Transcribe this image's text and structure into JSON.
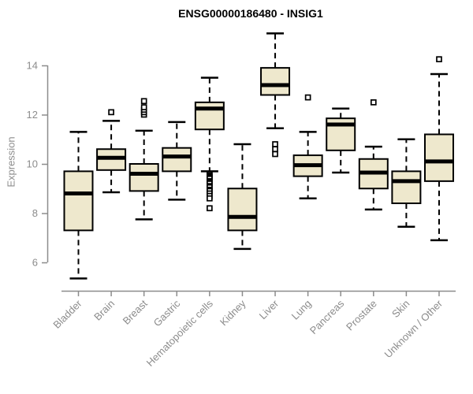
{
  "chart_data": {
    "type": "boxplot",
    "title": "ENSG00000186480 - INSIG1",
    "ylabel": "Expression",
    "xlabel": "",
    "ylim": [
      5.0,
      15.5
    ],
    "yticks": [
      6,
      8,
      10,
      12,
      14
    ],
    "grid": false,
    "legend": "none",
    "categories": [
      "Bladder",
      "Brain",
      "Breast",
      "Gastric",
      "Hematopoietic cells",
      "Kidney",
      "Liver",
      "Lung",
      "Pancreas",
      "Prostate",
      "Skin",
      "Unknown / Other"
    ],
    "boxes": [
      {
        "name": "Bladder",
        "whisker_low": 5.35,
        "q1": 7.3,
        "median": 8.8,
        "q3": 9.7,
        "whisker_high": 11.3,
        "outliers": []
      },
      {
        "name": "Brain",
        "whisker_low": 8.85,
        "q1": 9.75,
        "median": 10.25,
        "q3": 10.6,
        "whisker_high": 11.75,
        "outliers": [
          12.1
        ]
      },
      {
        "name": "Breast",
        "whisker_low": 7.75,
        "q1": 8.9,
        "median": 9.6,
        "q3": 10.0,
        "whisker_high": 11.35,
        "outliers": [
          12.0,
          12.1,
          12.2,
          12.3,
          12.55
        ]
      },
      {
        "name": "Gastric",
        "whisker_low": 8.55,
        "q1": 9.7,
        "median": 10.3,
        "q3": 10.65,
        "whisker_high": 11.7,
        "outliers": []
      },
      {
        "name": "Hematopoietic cells",
        "whisker_low": 9.7,
        "q1": 11.4,
        "median": 12.25,
        "q3": 12.5,
        "whisker_high": 13.5,
        "outliers": [
          9.6,
          9.55,
          9.5,
          9.45,
          9.4,
          9.3,
          9.25,
          9.2,
          9.1,
          9.05,
          8.95,
          8.9,
          8.8,
          8.7,
          8.6,
          8.2
        ]
      },
      {
        "name": "Kidney",
        "whisker_low": 6.55,
        "q1": 7.3,
        "median": 7.85,
        "q3": 9.0,
        "whisker_high": 10.8,
        "outliers": []
      },
      {
        "name": "Liver",
        "whisker_low": 11.45,
        "q1": 12.8,
        "median": 13.2,
        "q3": 13.9,
        "whisker_high": 15.3,
        "outliers": [
          10.8,
          10.6,
          10.4
        ]
      },
      {
        "name": "Lung",
        "whisker_low": 8.6,
        "q1": 9.5,
        "median": 9.95,
        "q3": 10.35,
        "whisker_high": 11.3,
        "outliers": [
          12.7
        ]
      },
      {
        "name": "Pancreas",
        "whisker_low": 9.65,
        "q1": 10.55,
        "median": 11.6,
        "q3": 11.85,
        "whisker_high": 12.25,
        "outliers": []
      },
      {
        "name": "Prostate",
        "whisker_low": 8.15,
        "q1": 9.0,
        "median": 9.65,
        "q3": 10.2,
        "whisker_high": 10.7,
        "outliers": [
          12.5
        ]
      },
      {
        "name": "Skin",
        "whisker_low": 7.45,
        "q1": 8.4,
        "median": 9.3,
        "q3": 9.7,
        "whisker_high": 11.0,
        "outliers": []
      },
      {
        "name": "Unknown / Other",
        "whisker_low": 6.9,
        "q1": 9.3,
        "median": 10.1,
        "q3": 11.2,
        "whisker_high": 13.65,
        "outliers": [
          14.25
        ]
      }
    ]
  },
  "colors": {
    "box_fill": "#eee8cd",
    "box_stroke": "#000000",
    "median": "#000000",
    "whisker": "#000000",
    "outlier_fill": "#ffffff",
    "axis": "#8c8c8c",
    "tick_text": "#8c8c8c",
    "title_text": "#000000",
    "background": "#ffffff"
  }
}
